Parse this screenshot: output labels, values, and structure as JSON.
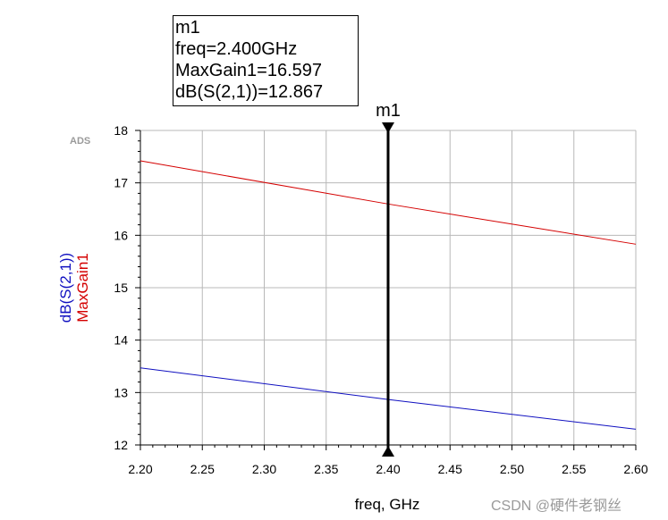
{
  "marker_readout": {
    "name": "m1",
    "freq_line": "freq=2.400GHz",
    "maxgain_line": "MaxGain1=16.597",
    "s21_line": "dB(S(2,1))=12.867"
  },
  "marker_label": "m1",
  "ads_tag": "ADS",
  "watermark": "CSDN @硬件老钢丝",
  "colors": {
    "maxgain": "#d40000",
    "s21": "#1010c0",
    "grid": "#b8b8b8",
    "axis": "#000000"
  },
  "chart_data": {
    "type": "line",
    "title": "",
    "xlabel": "freq, GHz",
    "ylabels": [
      {
        "text": "dB(S(2,1))",
        "color": "#1010c0"
      },
      {
        "text": "MaxGain1",
        "color": "#d40000"
      }
    ],
    "xlim": [
      2.2,
      2.6
    ],
    "ylim": [
      12,
      18
    ],
    "xticks": [
      2.2,
      2.25,
      2.3,
      2.35,
      2.4,
      2.45,
      2.5,
      2.55,
      2.6
    ],
    "xtick_labels": [
      "2.20",
      "2.25",
      "2.30",
      "2.35",
      "2.40",
      "2.45",
      "2.50",
      "2.55",
      "2.60"
    ],
    "yticks": [
      12,
      13,
      14,
      15,
      16,
      17,
      18
    ],
    "ytick_labels": [
      "12",
      "13",
      "14",
      "15",
      "16",
      "17",
      "18"
    ],
    "grid": true,
    "marker": {
      "name": "m1",
      "x": 2.4
    },
    "series": [
      {
        "name": "MaxGain1",
        "color": "#d40000",
        "x": [
          2.2,
          2.4,
          2.6
        ],
        "values": [
          17.42,
          16.597,
          15.83
        ]
      },
      {
        "name": "dB(S(2,1))",
        "color": "#1010c0",
        "x": [
          2.2,
          2.4,
          2.6
        ],
        "values": [
          13.47,
          12.867,
          12.3
        ]
      }
    ]
  }
}
